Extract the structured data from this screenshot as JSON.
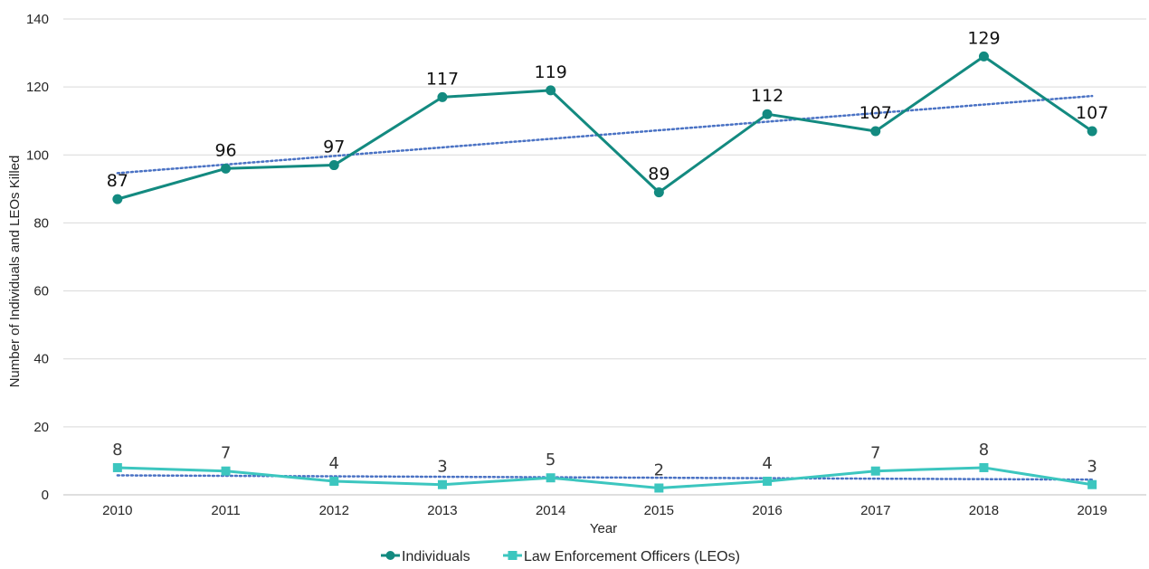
{
  "chart_data": {
    "type": "line",
    "categories": [
      "2010",
      "2011",
      "2012",
      "2013",
      "2014",
      "2015",
      "2016",
      "2017",
      "2018",
      "2019"
    ],
    "series": [
      {
        "name": "Individuals",
        "values": [
          87,
          96,
          97,
          117,
          119,
          89,
          112,
          107,
          129,
          107
        ],
        "color": "#138a80",
        "marker": "circle"
      },
      {
        "name": "Law Enforcement Officers (LEOs)",
        "values": [
          8,
          7,
          4,
          3,
          5,
          2,
          4,
          7,
          8,
          3
        ],
        "color": "#3cc6bf",
        "marker": "square"
      }
    ],
    "trendlines": [
      {
        "series": "Individuals",
        "type": "linear",
        "style": "dotted",
        "color": "#4a72c4"
      },
      {
        "series": "Law Enforcement Officers (LEOs)",
        "type": "linear",
        "style": "dotted",
        "color": "#4a72c4"
      }
    ],
    "xlabel": "Year",
    "ylabel": "Number of Individuals and LEOs Killed",
    "ylim": [
      0,
      140
    ],
    "yticks": [
      0,
      20,
      40,
      60,
      80,
      100,
      120,
      140
    ],
    "grid": true,
    "legend_position": "bottom",
    "data_labels": true
  }
}
